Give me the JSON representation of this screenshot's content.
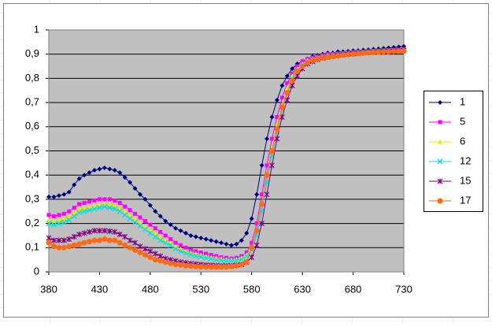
{
  "chart_data": {
    "type": "line",
    "x": [
      380,
      385,
      390,
      395,
      400,
      405,
      410,
      415,
      420,
      425,
      430,
      435,
      440,
      445,
      450,
      455,
      460,
      465,
      470,
      475,
      480,
      485,
      490,
      495,
      500,
      505,
      510,
      515,
      520,
      525,
      530,
      535,
      540,
      545,
      550,
      555,
      560,
      565,
      570,
      575,
      580,
      585,
      590,
      595,
      600,
      605,
      610,
      615,
      620,
      625,
      630,
      635,
      640,
      645,
      650,
      655,
      660,
      665,
      670,
      675,
      680,
      685,
      690,
      695,
      700,
      705,
      710,
      715,
      720,
      725,
      730
    ],
    "series": [
      {
        "name": "1",
        "color": "#000080",
        "marker": "diamond",
        "values": [
          0.31,
          0.31,
          0.315,
          0.32,
          0.33,
          0.36,
          0.385,
          0.4,
          0.41,
          0.42,
          0.425,
          0.43,
          0.425,
          0.42,
          0.41,
          0.39,
          0.37,
          0.345,
          0.32,
          0.3,
          0.275,
          0.25,
          0.23,
          0.21,
          0.195,
          0.18,
          0.17,
          0.16,
          0.15,
          0.145,
          0.14,
          0.135,
          0.13,
          0.125,
          0.12,
          0.115,
          0.11,
          0.115,
          0.13,
          0.16,
          0.22,
          0.32,
          0.44,
          0.55,
          0.64,
          0.71,
          0.77,
          0.81,
          0.84,
          0.86,
          0.87,
          0.88,
          0.89,
          0.895,
          0.9,
          0.905,
          0.905,
          0.91,
          0.91,
          0.912,
          0.914,
          0.915,
          0.917,
          0.918,
          0.92,
          0.922,
          0.924,
          0.926,
          0.928,
          0.93,
          0.932
        ]
      },
      {
        "name": "5",
        "color": "#ff00ff",
        "marker": "square",
        "values": [
          0.235,
          0.23,
          0.235,
          0.24,
          0.25,
          0.265,
          0.28,
          0.285,
          0.29,
          0.295,
          0.3,
          0.3,
          0.3,
          0.295,
          0.285,
          0.27,
          0.255,
          0.24,
          0.225,
          0.21,
          0.195,
          0.18,
          0.165,
          0.15,
          0.135,
          0.12,
          0.11,
          0.1,
          0.09,
          0.085,
          0.08,
          0.075,
          0.07,
          0.065,
          0.06,
          0.058,
          0.055,
          0.058,
          0.065,
          0.08,
          0.12,
          0.2,
          0.32,
          0.44,
          0.55,
          0.64,
          0.72,
          0.78,
          0.82,
          0.85,
          0.87,
          0.88,
          0.885,
          0.89,
          0.895,
          0.9,
          0.9,
          0.902,
          0.904,
          0.906,
          0.908,
          0.91,
          0.91,
          0.912,
          0.914,
          0.915,
          0.916,
          0.917,
          0.918,
          0.919,
          0.92
        ]
      },
      {
        "name": "6",
        "color": "#e8e800",
        "marker": "triangle",
        "values": [
          0.215,
          0.21,
          0.215,
          0.22,
          0.23,
          0.245,
          0.26,
          0.265,
          0.27,
          0.275,
          0.28,
          0.28,
          0.28,
          0.275,
          0.265,
          0.25,
          0.235,
          0.22,
          0.205,
          0.19,
          0.175,
          0.16,
          0.145,
          0.13,
          0.12,
          0.105,
          0.095,
          0.085,
          0.08,
          0.075,
          0.07,
          0.065,
          0.06,
          0.058,
          0.055,
          0.052,
          0.05,
          0.052,
          0.058,
          0.07,
          0.1,
          0.17,
          0.28,
          0.4,
          0.51,
          0.61,
          0.69,
          0.76,
          0.81,
          0.84,
          0.86,
          0.875,
          0.88,
          0.885,
          0.89,
          0.895,
          0.898,
          0.9,
          0.902,
          0.904,
          0.906,
          0.908,
          0.91,
          0.911,
          0.912,
          0.913,
          0.914,
          0.915,
          0.916,
          0.917,
          0.918
        ]
      },
      {
        "name": "12",
        "color": "#00e0e0",
        "marker": "cross",
        "values": [
          0.2,
          0.195,
          0.2,
          0.205,
          0.215,
          0.23,
          0.245,
          0.25,
          0.255,
          0.26,
          0.265,
          0.27,
          0.265,
          0.26,
          0.25,
          0.235,
          0.22,
          0.205,
          0.19,
          0.175,
          0.16,
          0.145,
          0.13,
          0.12,
          0.11,
          0.095,
          0.085,
          0.078,
          0.072,
          0.066,
          0.062,
          0.058,
          0.054,
          0.05,
          0.048,
          0.046,
          0.045,
          0.047,
          0.052,
          0.065,
          0.09,
          0.15,
          0.25,
          0.37,
          0.48,
          0.58,
          0.67,
          0.74,
          0.8,
          0.83,
          0.855,
          0.87,
          0.878,
          0.884,
          0.888,
          0.892,
          0.895,
          0.898,
          0.9,
          0.902,
          0.904,
          0.906,
          0.908,
          0.91,
          0.911,
          0.912,
          0.913,
          0.914,
          0.915,
          0.916,
          0.917
        ]
      },
      {
        "name": "15",
        "color": "#800080",
        "marker": "star",
        "values": [
          0.14,
          0.13,
          0.13,
          0.13,
          0.135,
          0.145,
          0.155,
          0.16,
          0.165,
          0.17,
          0.17,
          0.17,
          0.168,
          0.165,
          0.155,
          0.145,
          0.13,
          0.12,
          0.105,
          0.095,
          0.085,
          0.075,
          0.065,
          0.055,
          0.05,
          0.045,
          0.04,
          0.037,
          0.034,
          0.032,
          0.03,
          0.028,
          0.027,
          0.026,
          0.025,
          0.025,
          0.025,
          0.027,
          0.03,
          0.04,
          0.06,
          0.11,
          0.2,
          0.32,
          0.44,
          0.55,
          0.64,
          0.71,
          0.77,
          0.81,
          0.84,
          0.86,
          0.87,
          0.878,
          0.884,
          0.888,
          0.892,
          0.895,
          0.898,
          0.9,
          0.902,
          0.904,
          0.906,
          0.908,
          0.909,
          0.91,
          0.911,
          0.912,
          0.913,
          0.914,
          0.915
        ]
      },
      {
        "name": "17",
        "color": "#ff6a13",
        "marker": "circle",
        "values": [
          0.12,
          0.105,
          0.1,
          0.1,
          0.105,
          0.11,
          0.115,
          0.12,
          0.125,
          0.13,
          0.13,
          0.135,
          0.13,
          0.13,
          0.12,
          0.11,
          0.1,
          0.09,
          0.08,
          0.07,
          0.06,
          0.05,
          0.045,
          0.04,
          0.035,
          0.03,
          0.028,
          0.025,
          0.024,
          0.022,
          0.021,
          0.02,
          0.02,
          0.02,
          0.02,
          0.02,
          0.022,
          0.025,
          0.03,
          0.04,
          0.1,
          0.17,
          0.28,
          0.4,
          0.5,
          0.59,
          0.68,
          0.74,
          0.79,
          0.83,
          0.85,
          0.865,
          0.875,
          0.88,
          0.885,
          0.888,
          0.89,
          0.893,
          0.896,
          0.898,
          0.9,
          0.902,
          0.904,
          0.906,
          0.907,
          0.908,
          0.909,
          0.91,
          0.911,
          0.912,
          0.913
        ]
      }
    ],
    "xlim": [
      380,
      730
    ],
    "xticks": [
      380,
      430,
      480,
      530,
      580,
      630,
      680,
      730
    ],
    "ylim": [
      0,
      1
    ],
    "yticks": [
      0,
      {
        "value": 0.1,
        "label": "0,1"
      },
      {
        "value": 0.2,
        "label": "0,2"
      },
      {
        "value": 0.3,
        "label": "0,3"
      },
      {
        "value": 0.4,
        "label": "0,4"
      },
      {
        "value": 0.5,
        "label": "0,5"
      },
      {
        "value": 0.6,
        "label": "0,6"
      },
      {
        "value": 0.7,
        "label": "0,7"
      },
      {
        "value": 0.8,
        "label": "0,8"
      },
      {
        "value": 0.9,
        "label": "0,9"
      },
      1
    ],
    "grid": true,
    "legend": "right"
  }
}
